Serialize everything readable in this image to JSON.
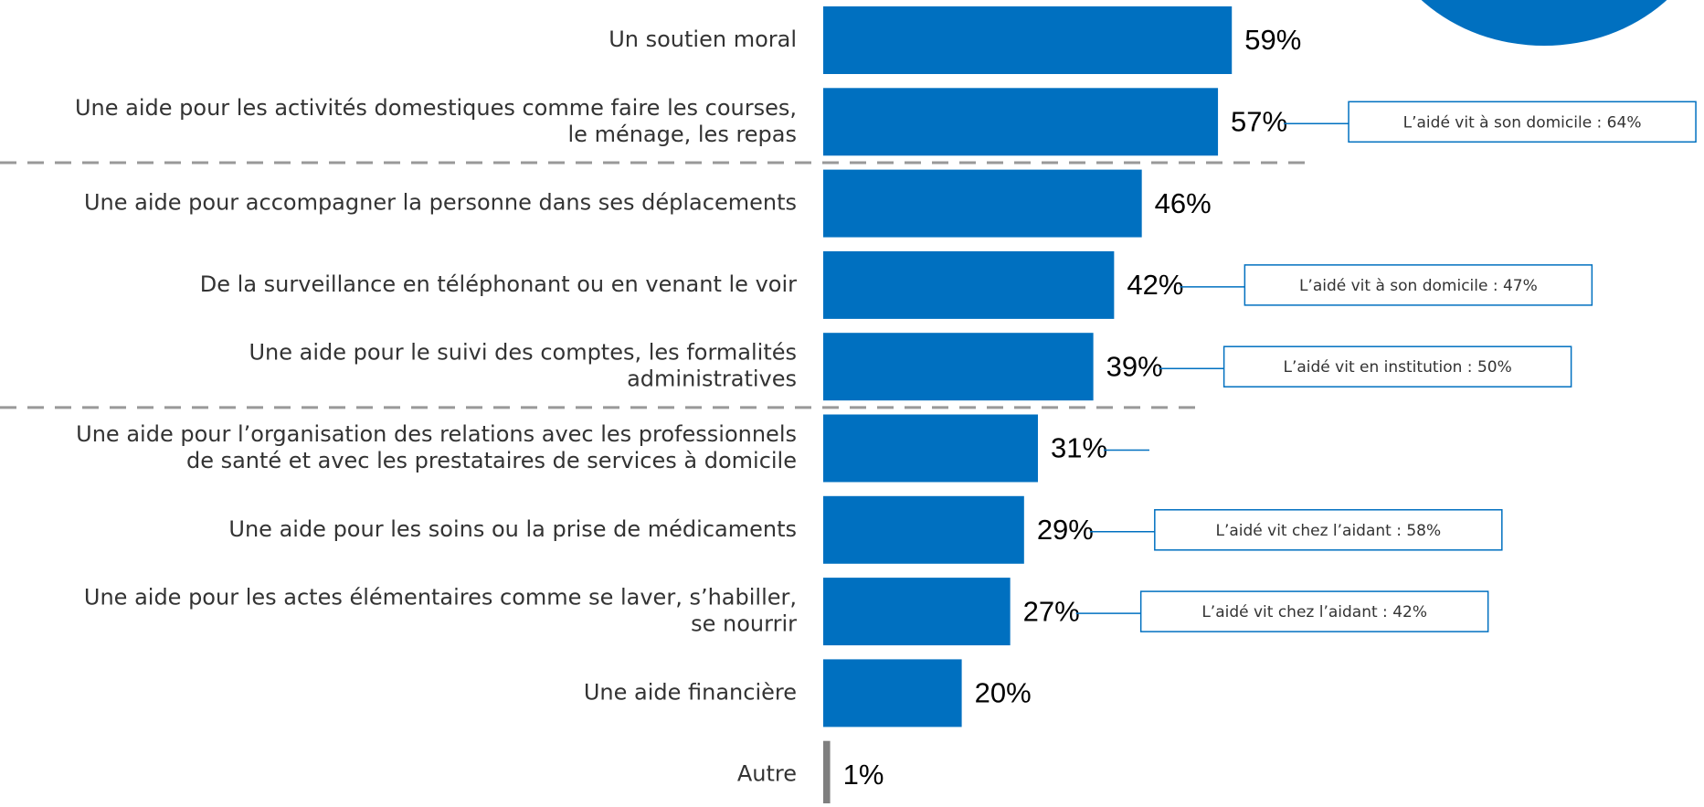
{
  "chart_data": {
    "type": "hbar",
    "categories": [
      "Un soutien moral",
      "Une aide pour les activités domestiques comme faire les courses,\nle ménage, les repas",
      "Une aide pour accompagner la personne dans ses déplacements",
      "De la surveillance en téléphonant ou en venant le voir",
      "Une aide pour le suivi des comptes, les formalités\nadministratives",
      "Une aide pour l’organisation des relations avec les professionnels\nde santé et avec les prestataires de services à domicile",
      "Une aide pour les soins ou la prise de médicaments",
      "Une aide pour les actes élémentaires comme se laver, s’habiller,\nse nourrir",
      "Une aide financière",
      "Autre"
    ],
    "values": [
      59,
      57,
      46,
      42,
      39,
      31,
      29,
      27,
      20,
      1
    ],
    "value_labels": [
      "59%",
      "57%",
      "46%",
      "42%",
      "39%",
      "31%",
      "29%",
      "27%",
      "20%",
      "1%"
    ],
    "colors": [
      "#0070c0",
      "#0070c0",
      "#0070c0",
      "#0070c0",
      "#0070c0",
      "#0070c0",
      "#0070c0",
      "#0070c0",
      "#0070c0",
      "#7f7f7f"
    ],
    "notes": [
      null,
      "L’aidé vit à son domicile : 64%",
      null,
      "L’aidé vit à son domicile : 47%",
      "L’aidé vit en institution : 50%",
      null,
      "L’aidé vit chez l’aidant : 58%",
      "L’aidé vit chez l’aidant : 42%",
      null,
      null
    ],
    "xlim": [
      0,
      100
    ]
  }
}
